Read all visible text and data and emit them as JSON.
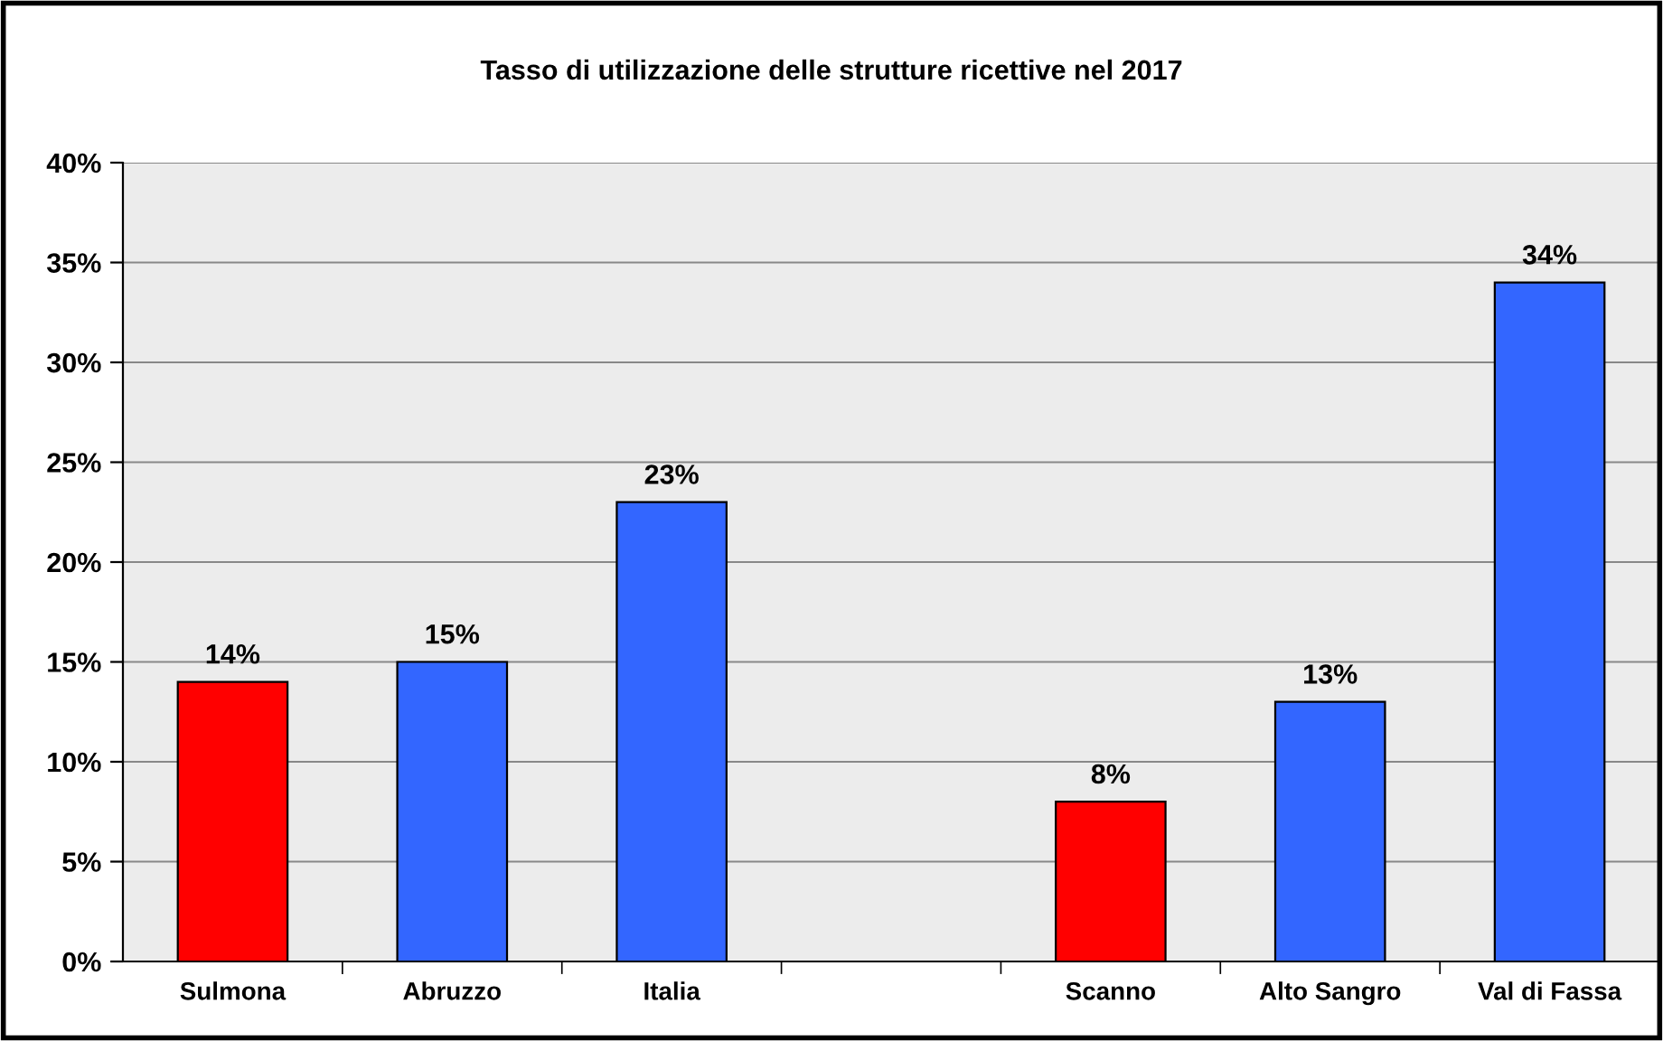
{
  "chart_data": {
    "type": "bar",
    "title": "Tasso di utilizzazione delle strutture ricettive nel 2017",
    "categories": [
      "Sulmona",
      "Abruzzo",
      "Italia",
      null,
      "Scanno",
      "Alto Sangro",
      "Val di Fassa"
    ],
    "values": [
      14,
      15,
      23,
      null,
      8,
      13,
      34
    ],
    "colors": [
      "#ff0000",
      "#3366ff",
      "#3366ff",
      null,
      "#ff0000",
      "#3366ff",
      "#3366ff"
    ],
    "value_labels": [
      "14%",
      "15%",
      "23%",
      null,
      "8%",
      "13%",
      "34%"
    ],
    "ylim": [
      0,
      40
    ],
    "yticks": [
      {
        "value": 0,
        "label": "0%"
      },
      {
        "value": 5,
        "label": "5%"
      },
      {
        "value": 10,
        "label": "10%"
      },
      {
        "value": 15,
        "label": "15%"
      },
      {
        "value": 20,
        "label": "20%"
      },
      {
        "value": 25,
        "label": "25%"
      },
      {
        "value": 30,
        "label": "30%"
      },
      {
        "value": 35,
        "label": "35%"
      },
      {
        "value": 40,
        "label": "40%"
      }
    ],
    "grid": "y",
    "legend": false
  }
}
